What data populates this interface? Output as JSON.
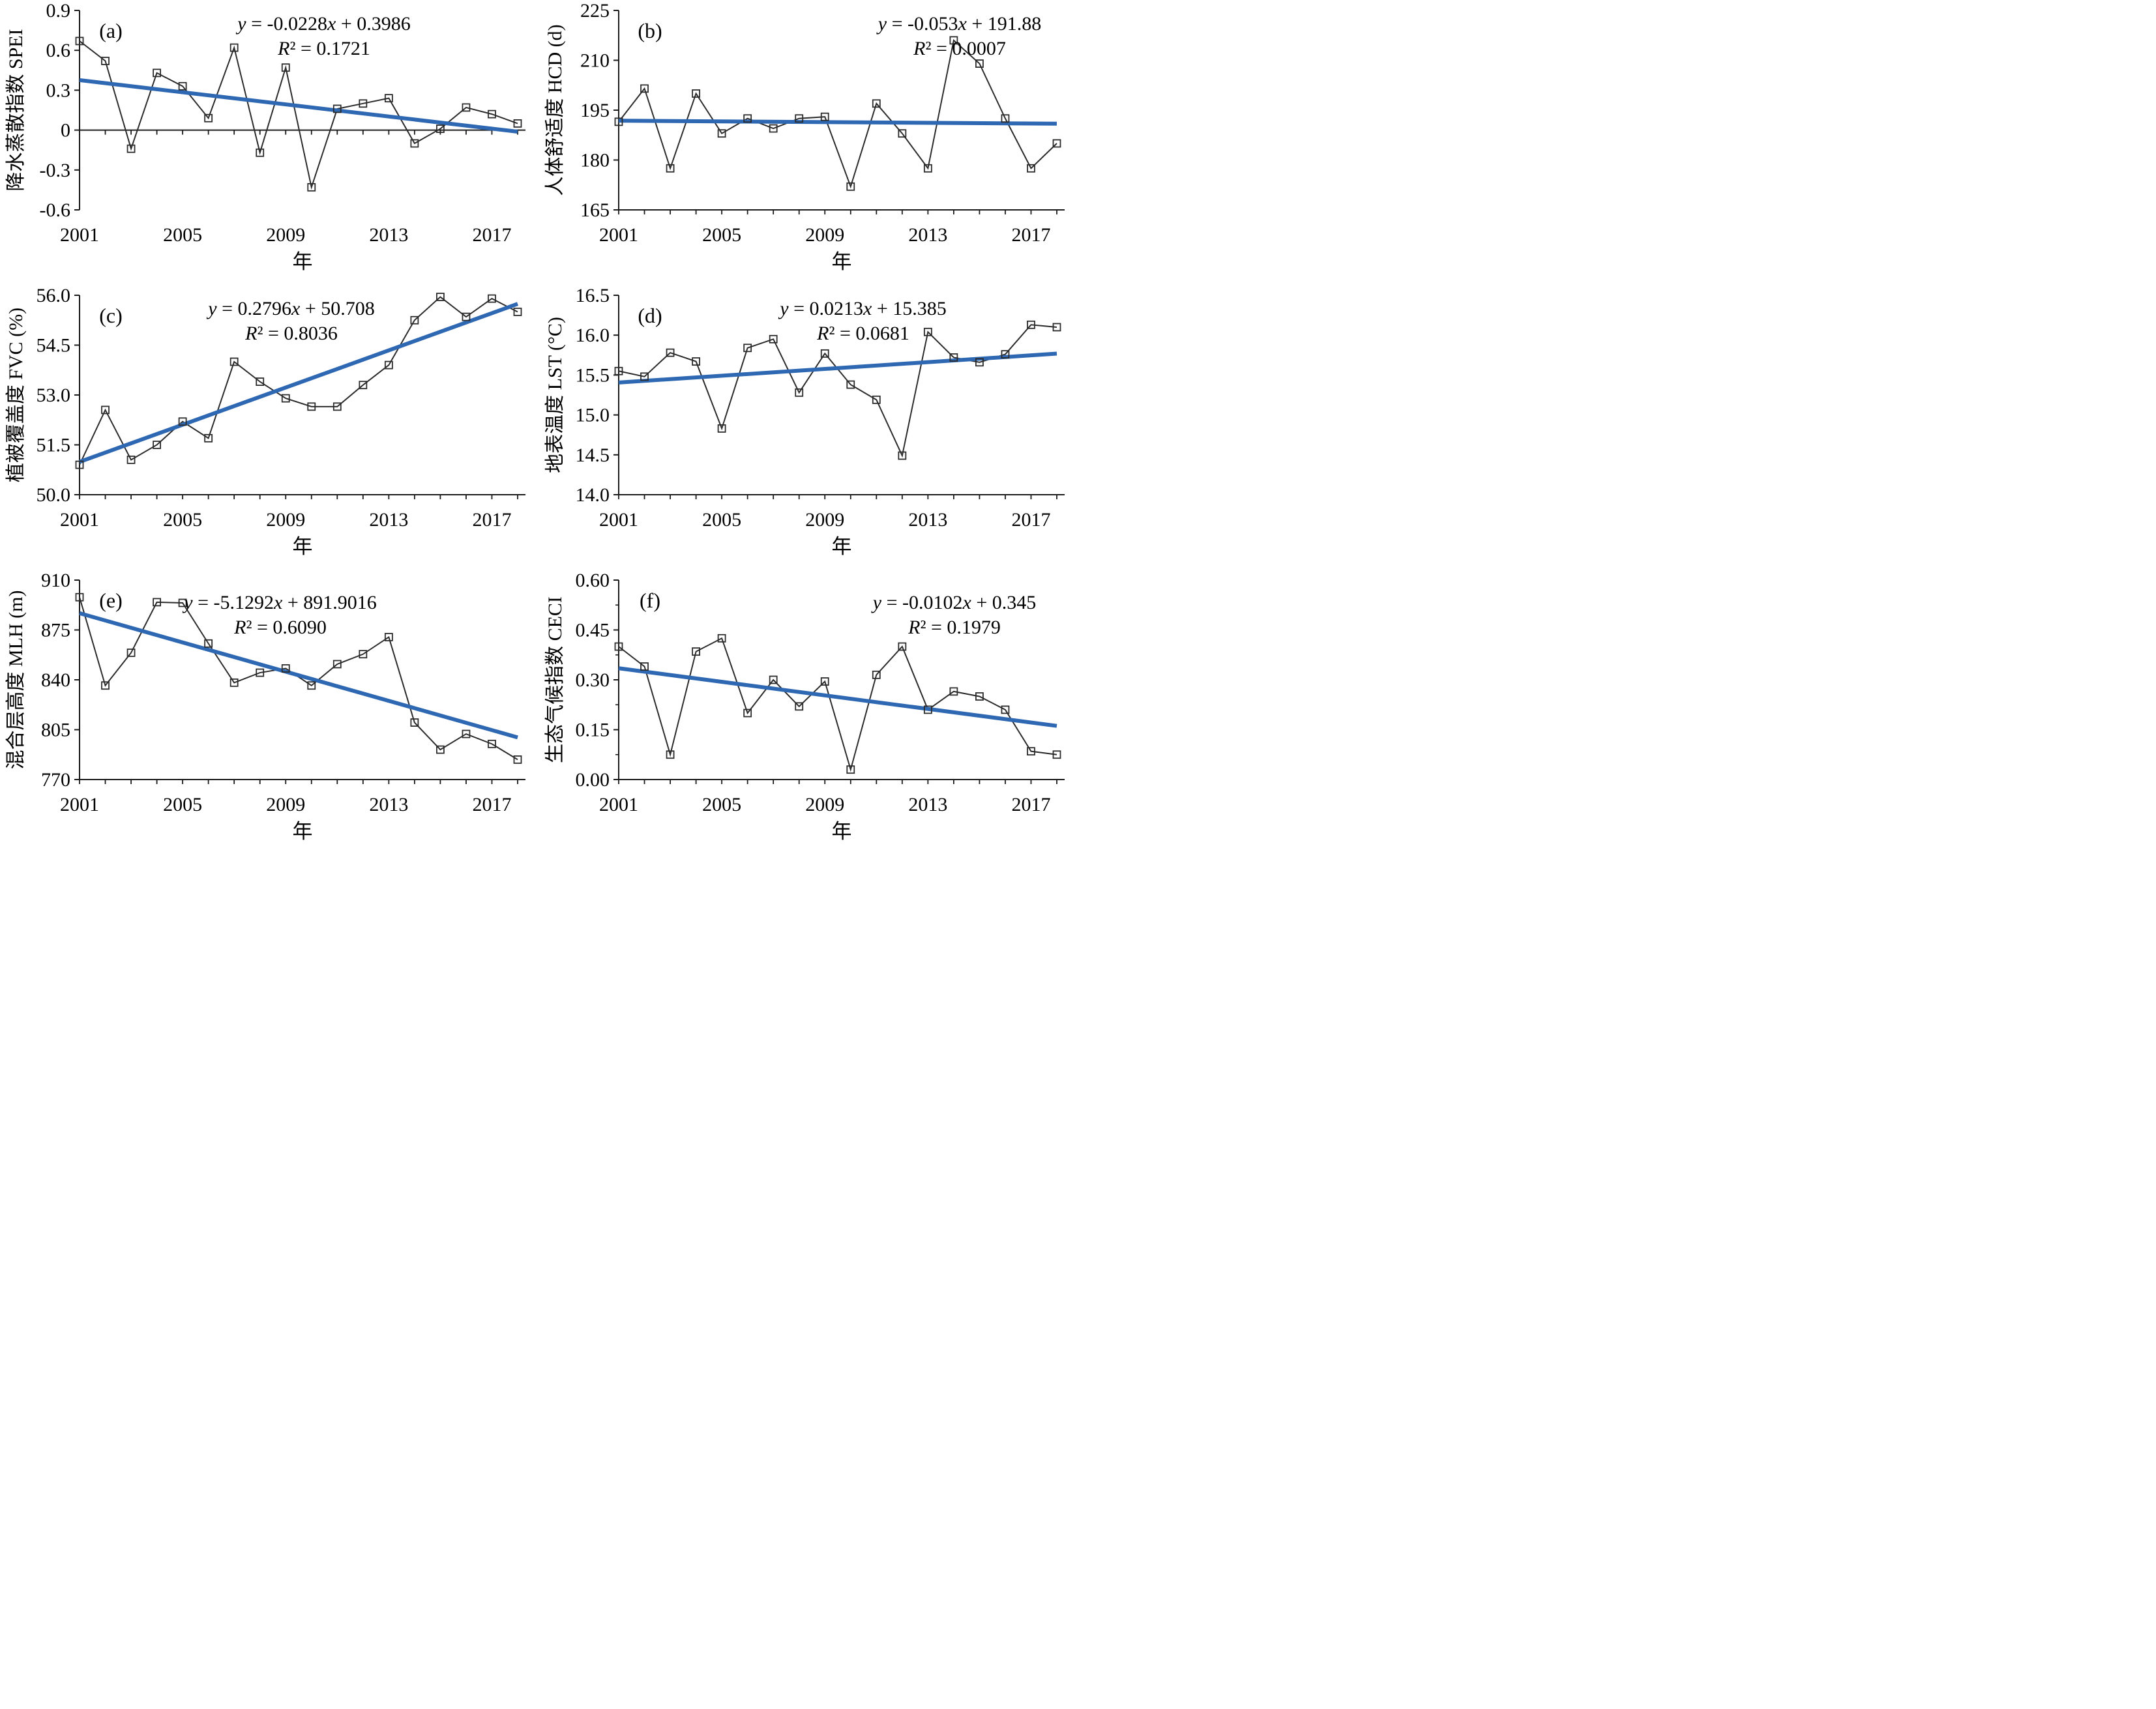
{
  "figure": {
    "xlabel": "年",
    "years": [
      2001,
      2002,
      2003,
      2004,
      2005,
      2006,
      2007,
      2008,
      2009,
      2010,
      2011,
      2012,
      2013,
      2014,
      2015,
      2016,
      2017,
      2018
    ],
    "xtick_labels": [
      "2001",
      "2005",
      "2009",
      "2013",
      "2017"
    ],
    "colors": {
      "series_line": "#2b2b2b",
      "marker_stroke": "#2b2b2b",
      "trend_line": "#2f68b2",
      "axis": "#1a1a1a",
      "text": "#000000"
    }
  },
  "chart_data": [
    {
      "type": "line",
      "panel_label": "(a)",
      "ylabel": "降水蒸散指数 SPEI",
      "equation": "y = -0.0228x + 0.3986",
      "r_squared": "R² = 0.1721",
      "ylim": [
        -0.6,
        0.9
      ],
      "yticks": [
        0.9,
        0.6,
        0.3,
        0,
        -0.3,
        -0.6
      ],
      "ytick_labels": [
        "0.9",
        "0.6",
        "0.3",
        "0",
        "-0.3",
        "-0.6"
      ],
      "values": [
        0.67,
        0.52,
        -0.14,
        0.43,
        0.33,
        0.09,
        0.62,
        -0.17,
        0.47,
        -0.43,
        0.16,
        0.2,
        0.24,
        -0.1,
        0.01,
        0.17,
        0.12,
        0.05
      ],
      "trend": {
        "slope": -0.0228,
        "intercept": 0.3986
      },
      "x_axis_at_zero": true,
      "y_minor_mid_ticks": false
    },
    {
      "type": "line",
      "panel_label": "(b)",
      "ylabel": "人体舒适度 HCD (d)",
      "equation": "y = -0.053x + 191.88",
      "r_squared": "R² = 0.0007",
      "ylim": [
        165,
        225
      ],
      "yticks": [
        225,
        210,
        195,
        180,
        165
      ],
      "ytick_labels": [
        "225",
        "210",
        "195",
        "180",
        "165"
      ],
      "values": [
        191.5,
        201.5,
        177.5,
        200,
        188,
        192.5,
        189.5,
        192.5,
        193,
        172,
        197,
        188,
        177.5,
        216,
        209,
        192.5,
        177.5,
        185
      ],
      "trend": {
        "slope": -0.053,
        "intercept": 191.88
      },
      "x_axis_at_zero": false,
      "y_minor_mid_ticks": false
    },
    {
      "type": "line",
      "panel_label": "(c)",
      "ylabel": "植被覆盖度 FVC (%)",
      "equation": "y = 0.2796x + 50.708",
      "r_squared": "R² = 0.8036",
      "ylim": [
        50.0,
        56.0
      ],
      "yticks": [
        56.0,
        54.5,
        53.0,
        51.5,
        50.0
      ],
      "ytick_labels": [
        "56.0",
        "54.5",
        "53.0",
        "51.5",
        "50.0"
      ],
      "values": [
        50.9,
        52.55,
        51.05,
        51.5,
        52.2,
        51.7,
        54.0,
        53.4,
        52.9,
        52.65,
        52.65,
        53.3,
        53.9,
        55.25,
        55.95,
        55.35,
        55.9,
        55.5
      ],
      "trend": {
        "slope": 0.2796,
        "intercept": 50.708
      },
      "x_axis_at_zero": false,
      "y_minor_mid_ticks": false
    },
    {
      "type": "line",
      "panel_label": "(d)",
      "ylabel": "地表温度 LST (°C)",
      "equation": "y = 0.0213x + 15.385",
      "r_squared": "R² = 0.0681",
      "ylim": [
        14.0,
        16.5
      ],
      "yticks": [
        16.5,
        16.0,
        15.5,
        15.0,
        14.5,
        14.0
      ],
      "ytick_labels": [
        "16.5",
        "16.0",
        "15.5",
        "15.0",
        "14.5",
        "14.0"
      ],
      "values": [
        15.55,
        15.48,
        15.78,
        15.67,
        14.83,
        15.84,
        15.95,
        15.28,
        15.77,
        15.38,
        15.19,
        14.49,
        16.04,
        15.72,
        15.66,
        15.76,
        16.13,
        16.1
      ],
      "trend": {
        "slope": 0.0213,
        "intercept": 15.385
      },
      "x_axis_at_zero": false,
      "y_minor_mid_ticks": false
    },
    {
      "type": "line",
      "panel_label": "(e)",
      "ylabel": "混合层高度 MLH (m)",
      "equation": "y = -5.1292x + 891.9016",
      "r_squared": "R² = 0.6090",
      "ylim": [
        770,
        910
      ],
      "yticks": [
        910,
        875,
        840,
        805,
        770
      ],
      "ytick_labels": [
        "910",
        "875",
        "840",
        "805",
        "770"
      ],
      "values": [
        898,
        836,
        859,
        894.5,
        894,
        865.5,
        838,
        845,
        848,
        836,
        851,
        858,
        870,
        810,
        791,
        802,
        795,
        784
      ],
      "trend": {
        "slope": -5.1292,
        "intercept": 891.9016
      },
      "x_axis_at_zero": false,
      "y_minor_mid_ticks": false
    },
    {
      "type": "line",
      "panel_label": "(f)",
      "ylabel": "生态气候指数 CECI",
      "equation": "y = -0.0102x + 0.345",
      "r_squared": "R² = 0.1979",
      "ylim": [
        0.0,
        0.6
      ],
      "yticks": [
        0.6,
        0.45,
        0.3,
        0.15,
        0.0
      ],
      "ytick_labels": [
        "0.60",
        "0.45",
        "0.30",
        "0.15",
        "0.00"
      ],
      "values": [
        0.4,
        0.34,
        0.075,
        0.385,
        0.425,
        0.2,
        0.3,
        0.22,
        0.295,
        0.03,
        0.315,
        0.4,
        0.21,
        0.265,
        0.25,
        0.21,
        0.085,
        0.075
      ],
      "trend": {
        "slope": -0.0102,
        "intercept": 0.345
      },
      "x_axis_at_zero": false,
      "y_minor_mid_ticks": true
    }
  ]
}
